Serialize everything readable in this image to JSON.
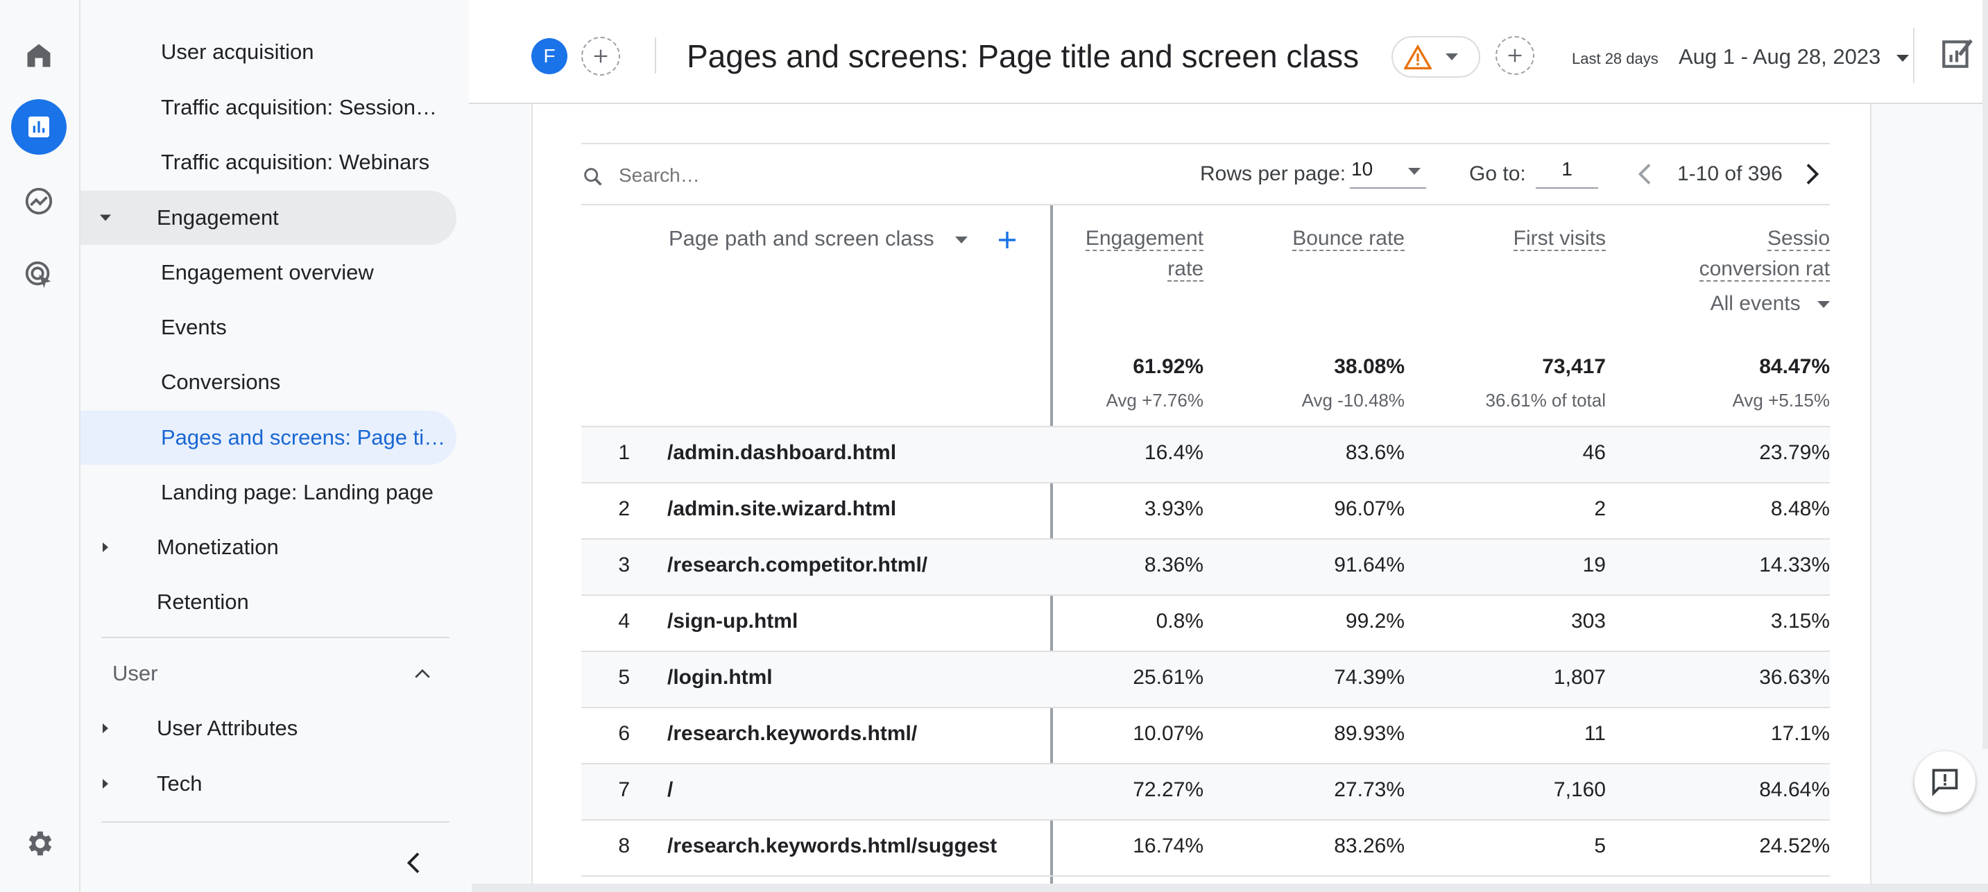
{
  "nav": {
    "items": [
      {
        "label": "User acquisition",
        "type": "sub"
      },
      {
        "label": "Traffic acquisition: Session…",
        "type": "sub"
      },
      {
        "label": "Traffic acquisition: Webinars",
        "type": "sub"
      },
      {
        "label": "Engagement",
        "type": "group-open"
      },
      {
        "label": "Engagement overview",
        "type": "sub"
      },
      {
        "label": "Events",
        "type": "sub"
      },
      {
        "label": "Conversions",
        "type": "sub"
      },
      {
        "label": "Pages and screens: Page ti…",
        "type": "sub-selected"
      },
      {
        "label": "Landing page: Landing page",
        "type": "sub"
      },
      {
        "label": "Monetization",
        "type": "group-closed"
      },
      {
        "label": "Retention",
        "type": "group-plain"
      }
    ],
    "user_section": "User",
    "user_items": [
      "User Attributes",
      "Tech"
    ]
  },
  "header": {
    "avatar_letter": "F",
    "title": "Pages and screens: Page title and screen class",
    "date_hint": "Last 28 days",
    "date_range": "Aug 1 - Aug 28, 2023"
  },
  "toolbar": {
    "search_placeholder": "Search…",
    "rows_per_page_label": "Rows per page:",
    "rows_per_page_value": "10",
    "goto_label": "Go to:",
    "goto_value": "1",
    "pagination": "1-10 of 396"
  },
  "table": {
    "dimension_header": "Page path and screen class",
    "col1_l1": "Engagement",
    "col1_l2": "rate",
    "col2": "Bounce rate",
    "col3": "First visits",
    "col4_l1": "Sessio",
    "col4_l2": "conversion rat",
    "col4_filter": "All events",
    "totals": {
      "engagement": "61.92%",
      "engagement_sub": "Avg +7.76%",
      "bounce": "38.08%",
      "bounce_sub": "Avg -10.48%",
      "first_visits": "73,417",
      "first_visits_sub": "36.61% of total",
      "conversion": "84.47%",
      "conversion_sub": "Avg +5.15%"
    },
    "rows": [
      {
        "n": "1",
        "path": "/admin.dashboard.html",
        "eng": "16.4%",
        "bounce": "83.6%",
        "fv": "46",
        "conv": "23.79%"
      },
      {
        "n": "2",
        "path": "/admin.site.wizard.html",
        "eng": "3.93%",
        "bounce": "96.07%",
        "fv": "2",
        "conv": "8.48%"
      },
      {
        "n": "3",
        "path": "/research.competitor.html/",
        "eng": "8.36%",
        "bounce": "91.64%",
        "fv": "19",
        "conv": "14.33%"
      },
      {
        "n": "4",
        "path": "/sign-up.html",
        "eng": "0.8%",
        "bounce": "99.2%",
        "fv": "303",
        "conv": "3.15%"
      },
      {
        "n": "5",
        "path": "/login.html",
        "eng": "25.61%",
        "bounce": "74.39%",
        "fv": "1,807",
        "conv": "36.63%"
      },
      {
        "n": "6",
        "path": "/research.keywords.html/",
        "eng": "10.07%",
        "bounce": "89.93%",
        "fv": "11",
        "conv": "17.1%"
      },
      {
        "n": "7",
        "path": "/",
        "eng": "72.27%",
        "bounce": "27.73%",
        "fv": "7,160",
        "conv": "84.64%"
      },
      {
        "n": "8",
        "path": "/research.keywords.html/suggest",
        "eng": "16.74%",
        "bounce": "83.26%",
        "fv": "5",
        "conv": "24.52%"
      }
    ]
  },
  "colors": {
    "accent": "#1a73e8",
    "selected_bg": "#e8f0fe",
    "warning": "#e8710a"
  }
}
